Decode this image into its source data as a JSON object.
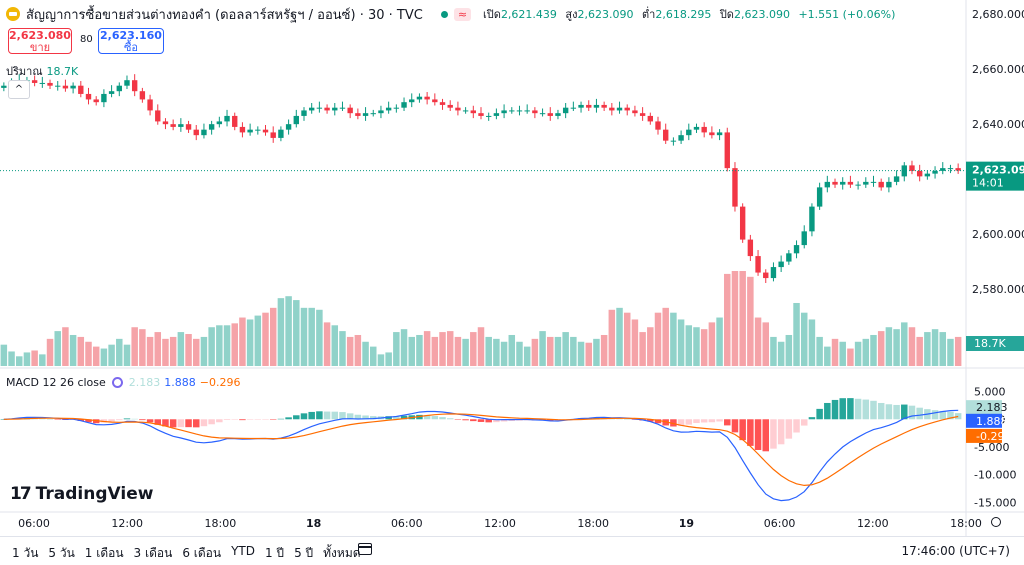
{
  "header": {
    "symbol_title": "สัญญาการซื้อขายส่วนต่างทองคำ (ดอลลาร์สหรัฐฯ / ออนซ์) · 30 · TVC",
    "wave_symbol": "≈",
    "ohlc": {
      "open_label": "เปิด",
      "open": "2,621.439",
      "high_label": "สูง",
      "high": "2,623.090",
      "low_label": "ต่ำ",
      "low": "2,618.295",
      "close_label": "ปิด",
      "close": "2,623.090",
      "change": "+1.551 (+0.06%)"
    }
  },
  "trade": {
    "sell_price": "2,623.080",
    "sell_label": "ขาย",
    "spread": "80",
    "buy_price": "2,623.160",
    "buy_label": "ซื้อ"
  },
  "volume_legend": {
    "label": "ปริมาณ",
    "value": "18.7K"
  },
  "collapse_symbol": "^",
  "macd_legend": {
    "label": "MACD 12 26 close",
    "hist": "2.183",
    "macd": "1.888",
    "signal": "−0.296"
  },
  "branding": {
    "logo_mark": "17",
    "logo_text": "TradingView"
  },
  "bottom_bar": {
    "ranges": [
      "1 วัน",
      "5 วัน",
      "1 เดือน",
      "3 เดือน",
      "6 เดือน",
      "YTD",
      "1 ปี",
      "5 ปี",
      "ทั้งหมด"
    ],
    "clock": "17:46:00 (UTC+7)"
  },
  "colors": {
    "up": "#089981",
    "down": "#f23645",
    "up_vol": "#90d2c9",
    "down_vol": "#f5a3a8",
    "macd": "#2962ff",
    "signal": "#ff6d00"
  },
  "chart_data": [
    {
      "type": "candlestick",
      "price_axis_ticks": [
        "2,680.000",
        "2,660.000",
        "2,640.000",
        "2,620.000",
        "2,600.000",
        "2,580.000",
        "2,560.000"
      ],
      "price_range": [
        2552,
        2683
      ],
      "time_axis_ticks": [
        "06:00",
        "12:00",
        "18:00",
        "18",
        "06:00",
        "12:00",
        "18:00",
        "19",
        "06:00",
        "12:00",
        "18:00"
      ],
      "last_price": "2,623.090",
      "countdown": "14:01",
      "close_series": [
        2654,
        2655,
        2656,
        2656,
        2655,
        2655,
        2654,
        2654,
        2653,
        2654,
        2651,
        2649,
        2648,
        2651,
        2652,
        2654,
        2656,
        2652,
        2649,
        2645,
        2641,
        2640,
        2639,
        2640,
        2638,
        2636,
        2638,
        2640,
        2641,
        2643,
        2639,
        2637,
        2638,
        2638,
        2637,
        2635,
        2638,
        2640,
        2643,
        2645,
        2646,
        2646,
        2645,
        2646,
        2646,
        2644,
        2643,
        2644,
        2644,
        2645,
        2646,
        2646,
        2648,
        2649,
        2650,
        2649,
        2648,
        2647,
        2646,
        2645,
        2645,
        2644,
        2643,
        2643,
        2644,
        2645,
        2645,
        2645,
        2645,
        2644,
        2644,
        2643,
        2644,
        2646,
        2646,
        2647,
        2646,
        2647,
        2646,
        2645,
        2646,
        2645,
        2644,
        2643,
        2641,
        2638,
        2634,
        2634,
        2636,
        2638,
        2639,
        2637,
        2636,
        2637,
        2624,
        2610,
        2598,
        2592,
        2586,
        2584,
        2588,
        2590,
        2593,
        2596,
        2601,
        2610,
        2617,
        2619,
        2618,
        2619,
        2618,
        2618,
        2619,
        2619,
        2617,
        2619,
        2621,
        2625,
        2623,
        2621,
        2622,
        2623,
        2624,
        2624,
        2623.09
      ],
      "volume_value": "18.7K",
      "volume_series": [
        22,
        15,
        10,
        14,
        16,
        12,
        28,
        36,
        40,
        32,
        30,
        25,
        20,
        18,
        22,
        28,
        22,
        40,
        38,
        30,
        35,
        28,
        30,
        35,
        33,
        28,
        30,
        40,
        42,
        42,
        44,
        50,
        48,
        52,
        55,
        60,
        70,
        72,
        68,
        60,
        60,
        58,
        45,
        42,
        36,
        30,
        32,
        25,
        20,
        12,
        14,
        35,
        38,
        30,
        32,
        36,
        30,
        35,
        36,
        30,
        28,
        35,
        40,
        30,
        28,
        25,
        32,
        25,
        20,
        28,
        36,
        30,
        30,
        35,
        30,
        25,
        24,
        28,
        32,
        58,
        60,
        55,
        48,
        35,
        40,
        55,
        60,
        55,
        48,
        42,
        40,
        38,
        45,
        50,
        95,
        98,
        98,
        92,
        50,
        45,
        30,
        25,
        32,
        65,
        55,
        48,
        30,
        20,
        28,
        25,
        18,
        25,
        28,
        32,
        36,
        40,
        38,
        45,
        40,
        30,
        35,
        38,
        35,
        28,
        30
      ]
    },
    {
      "type": "macd",
      "params": "12 26 close",
      "axis_ticks": [
        "5.000",
        "0.000",
        "-5.000",
        "-10.000",
        "-15.000"
      ],
      "range": [
        -16,
        6
      ],
      "histogram_last": "2.183",
      "macd_last": "1.888",
      "signal_last": "-0.296"
    }
  ]
}
